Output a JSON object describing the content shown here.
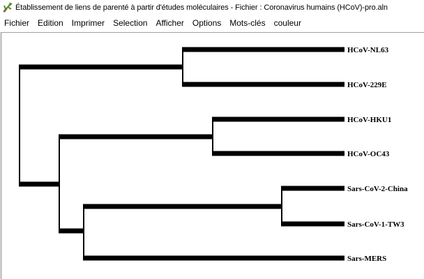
{
  "window": {
    "title": "Établissement de liens de parenté à partir d'études moléculaires - Fichier : Coronavirus humains (HCoV)-pro.aln",
    "icon": "tree-app-icon"
  },
  "menu": {
    "items": [
      {
        "label": "Fichier"
      },
      {
        "label": "Edition"
      },
      {
        "label": "Imprimer"
      },
      {
        "label": "Selection"
      },
      {
        "label": "Afficher"
      },
      {
        "label": "Options"
      },
      {
        "label": "Mots-clés"
      },
      {
        "label": "couleur"
      }
    ]
  },
  "tree": {
    "leaves": [
      {
        "label": "HCoV-NL63"
      },
      {
        "label": "HCoV-229E"
      },
      {
        "label": "HCoV-HKU1"
      },
      {
        "label": "HCoV-OC43"
      },
      {
        "label": "Sars-CoV-2-China"
      },
      {
        "label": "Sars-CoV-1-TW3"
      },
      {
        "label": "Sars-MERS"
      }
    ],
    "topology": "((HCoV-NL63,HCoV-229E),((HCoV-HKU1,HCoV-OC43),((Sars-CoV-2-China,Sars-CoV-1-TW3),Sars-MERS)))",
    "branch_color": "#000000"
  }
}
